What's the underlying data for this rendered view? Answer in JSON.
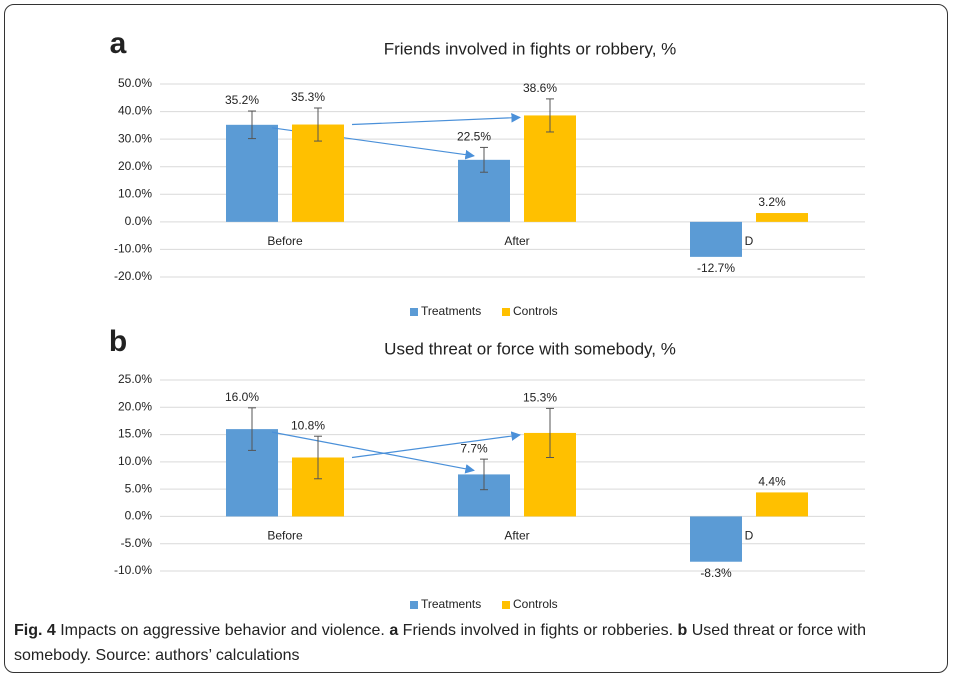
{
  "chart_data": [
    {
      "type": "bar",
      "panel": "a",
      "title": "Friends involved in fights or robbery, %",
      "categories": [
        "Before",
        "After",
        "D"
      ],
      "series": [
        {
          "name": "Treatments",
          "color": "#5b9bd5",
          "values": [
            35.2,
            22.5,
            -12.7
          ],
          "value_labels": [
            "35.2%",
            "22.5%",
            "-12.7%"
          ],
          "errors": [
            5,
            4.5,
            null
          ]
        },
        {
          "name": "Controls",
          "color": "#ffc000",
          "values": [
            35.3,
            38.6,
            3.2
          ],
          "value_labels": [
            "35.3%",
            "38.6%",
            "3.2%"
          ],
          "errors": [
            6,
            6,
            null
          ]
        }
      ],
      "ylim": [
        -20,
        50
      ],
      "yticks": [
        {
          "value": -20,
          "label": "-20.0%"
        },
        {
          "value": -10,
          "label": "-10.0%"
        },
        {
          "value": 0,
          "label": "0.0%"
        },
        {
          "value": 10,
          "label": "10.0%"
        },
        {
          "value": 20,
          "label": "20.0%"
        },
        {
          "value": 30,
          "label": "30.0%"
        },
        {
          "value": 40,
          "label": "40.0%"
        },
        {
          "value": 50,
          "label": "50.0%"
        }
      ],
      "grid": true,
      "legend": "bottom"
    },
    {
      "type": "bar",
      "panel": "b",
      "title": "Used threat or force with somebody, %",
      "categories": [
        "Before",
        "After",
        "D"
      ],
      "series": [
        {
          "name": "Treatments",
          "color": "#5b9bd5",
          "values": [
            16.0,
            7.7,
            -8.3
          ],
          "value_labels": [
            "16.0%",
            "7.7%",
            "-8.3%"
          ],
          "errors": [
            3.9,
            2.8,
            null
          ]
        },
        {
          "name": "Controls",
          "color": "#ffc000",
          "values": [
            10.8,
            15.3,
            4.4
          ],
          "value_labels": [
            "10.8%",
            "15.3%",
            "4.4%"
          ],
          "errors": [
            3.9,
            4.5,
            null
          ]
        }
      ],
      "ylim": [
        -10,
        25
      ],
      "yticks": [
        {
          "value": -10,
          "label": "-10.0%"
        },
        {
          "value": -5,
          "label": "-5.0%"
        },
        {
          "value": 0,
          "label": "0.0%"
        },
        {
          "value": 5,
          "label": "5.0%"
        },
        {
          "value": 10,
          "label": "10.0%"
        },
        {
          "value": 15,
          "label": "15.0%"
        },
        {
          "value": 20,
          "label": "20.0%"
        },
        {
          "value": 25,
          "label": "25.0%"
        }
      ],
      "grid": true,
      "legend": "bottom"
    }
  ],
  "caption": [
    {
      "text": "Fig. 4",
      "bold": true
    },
    {
      "text": " Impacts on aggressive behavior and violence. "
    },
    {
      "text": "a",
      "bold": true
    },
    {
      "text": " Friends involved in fights or robberies. "
    },
    {
      "text": "b",
      "bold": true
    },
    {
      "text": " Used threat or force with somebody. Source: authors’ calculations"
    }
  ]
}
